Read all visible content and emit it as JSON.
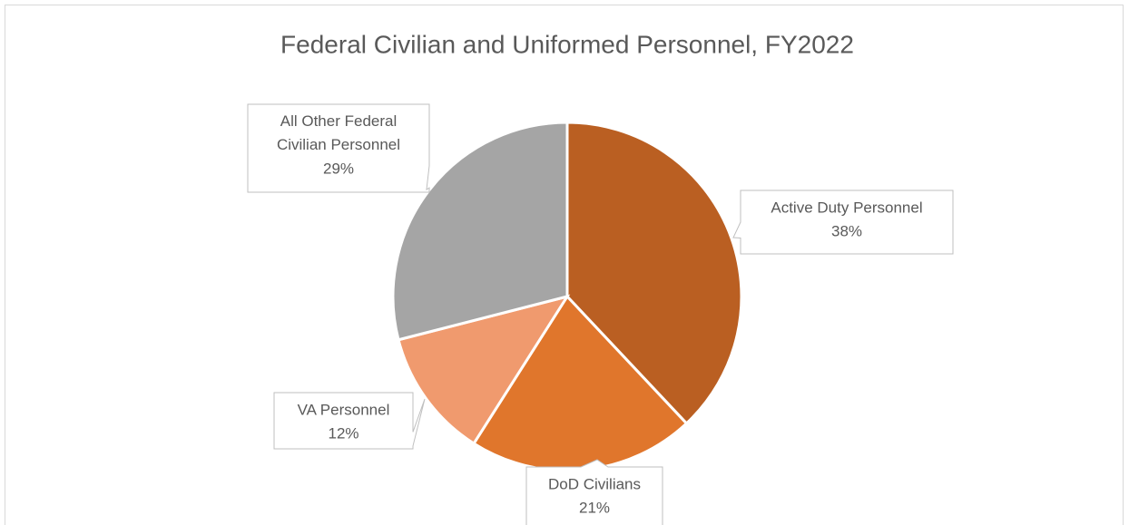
{
  "chart_data": {
    "type": "pie",
    "title": "Federal Civilian and Uniformed Personnel, FY2022",
    "categories": [
      "Active Duty Personnel",
      "DoD Civilians",
      "VA Personnel",
      "All Other Federal Civilian Personnel"
    ],
    "values": [
      38,
      21,
      12,
      29
    ],
    "value_labels": [
      "38%",
      "21%",
      "12%",
      "29%"
    ],
    "colors": [
      "#BA5F22",
      "#E0762C",
      "#F09A6E",
      "#A5A5A5"
    ]
  }
}
